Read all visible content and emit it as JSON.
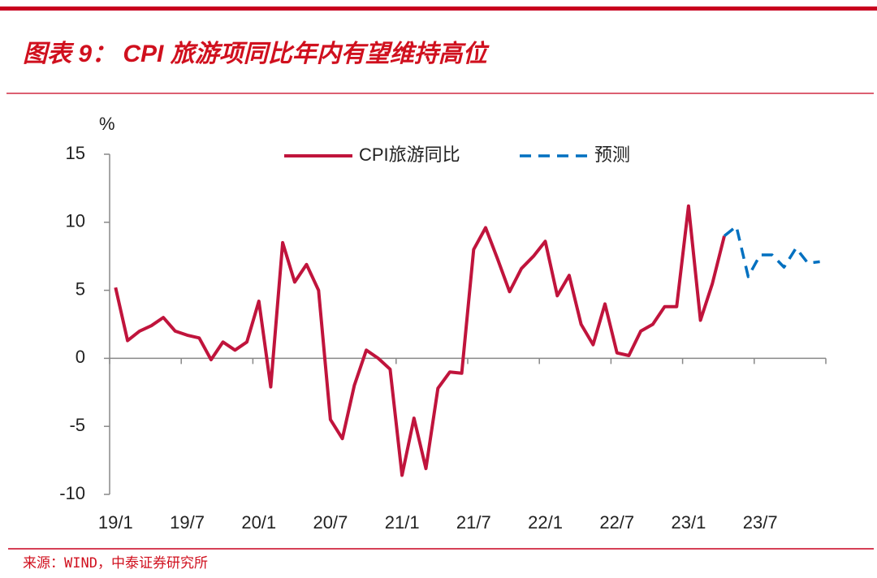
{
  "chart_data": {
    "type": "line",
    "title": "图表 9：  CPI 旅游项同比年内有望维持高位",
    "y_label": "%",
    "source": "来源：WIND，中泰证券研究所",
    "categories": [
      "19/1",
      null,
      null,
      null,
      null,
      null,
      "19/7",
      null,
      null,
      null,
      null,
      null,
      "20/1",
      null,
      null,
      null,
      null,
      null,
      "20/7",
      null,
      null,
      null,
      null,
      null,
      "21/1",
      null,
      null,
      null,
      null,
      null,
      "21/7",
      null,
      null,
      null,
      null,
      null,
      "22/1",
      null,
      null,
      null,
      null,
      null,
      "22/7",
      null,
      null,
      null,
      null,
      null,
      "23/1",
      null,
      null,
      null,
      null,
      null,
      "23/7",
      null,
      null,
      null,
      null,
      null
    ],
    "series": [
      {
        "name": "CPI旅游同比",
        "color": "#c0143c",
        "dashed": false,
        "values": [
          5.2,
          1.3,
          2.0,
          2.4,
          3.0,
          2.0,
          1.7,
          1.5,
          -0.1,
          1.2,
          0.6,
          1.2,
          4.2,
          -2.1,
          8.5,
          5.6,
          6.9,
          5.0,
          -4.5,
          -5.9,
          -2.0,
          0.6,
          0.0,
          -0.8,
          -8.6,
          -4.4,
          -8.1,
          -2.2,
          -1.0,
          -1.1,
          8.0,
          9.6,
          7.3,
          4.9,
          6.6,
          7.5,
          8.6,
          4.6,
          6.1,
          2.5,
          1.0,
          4.0,
          0.4,
          0.2,
          2.0,
          2.5,
          3.8,
          3.8,
          11.2,
          2.8,
          5.5,
          9.0,
          null,
          null,
          null,
          null,
          null,
          null,
          null,
          null
        ]
      },
      {
        "name": "预测",
        "color": "#0070c0",
        "dashed": true,
        "values": [
          null,
          null,
          null,
          null,
          null,
          null,
          null,
          null,
          null,
          null,
          null,
          null,
          null,
          null,
          null,
          null,
          null,
          null,
          null,
          null,
          null,
          null,
          null,
          null,
          null,
          null,
          null,
          null,
          null,
          null,
          null,
          null,
          null,
          null,
          null,
          null,
          null,
          null,
          null,
          null,
          null,
          null,
          null,
          null,
          null,
          null,
          null,
          null,
          null,
          null,
          null,
          9.0,
          9.7,
          6.0,
          7.6,
          7.6,
          6.7,
          8.1,
          7.0,
          7.1
        ]
      }
    ],
    "ylim": [
      -10,
      15
    ],
    "yticks": [
      -10,
      -5,
      0,
      5,
      10,
      15
    ],
    "grid": false,
    "legend": "top"
  }
}
